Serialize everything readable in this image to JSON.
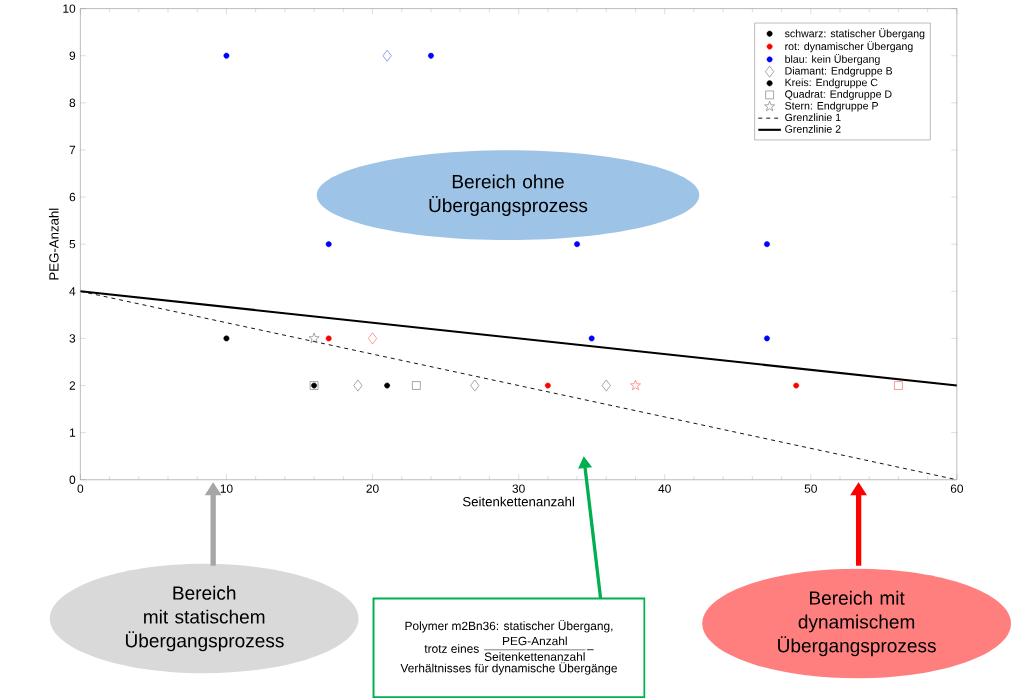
{
  "chart_data": {
    "type": "scatter",
    "xlabel": "Seitenkettenanzahl",
    "ylabel": "PEG-Anzahl",
    "xlim": [
      0,
      60
    ],
    "ylim": [
      0,
      10
    ],
    "xticks": [
      0,
      10,
      20,
      30,
      40,
      50,
      60
    ],
    "yticks": [
      0,
      1,
      2,
      3,
      4,
      5,
      6,
      7,
      8,
      9,
      10
    ],
    "legend": "top right",
    "grid": false,
    "series": [
      {
        "name": "schwarz: statischer Übergang",
        "marker": "circle",
        "color": "#000000"
      },
      {
        "name": "rot: dynamischer Übergang",
        "marker": "circle",
        "color": "#ff0000"
      },
      {
        "name": "blau: kein Übergang",
        "marker": "circle",
        "color": "#0000ff"
      },
      {
        "name": "Diamant: Endgruppe B",
        "marker": "diamond",
        "color": "#595959",
        "x": [
          19,
          27,
          36,
          20,
          21
        ],
        "values": [
          2,
          2,
          2,
          3,
          9
        ],
        "colors": [
          "#595959",
          "#595959",
          "#595959",
          "#ff4040",
          "#4040ff"
        ]
      },
      {
        "name": "Kreis: Endgruppe C",
        "marker": "circle",
        "color": "#000000",
        "x": [
          10,
          16,
          21,
          17,
          32,
          49,
          10,
          24,
          17,
          34,
          47,
          35,
          47
        ],
        "values": [
          3,
          2,
          2,
          3,
          2,
          2,
          9,
          9,
          5,
          5,
          5,
          3,
          3
        ],
        "colors": [
          "#000000",
          "#000000",
          "#000000",
          "#ff0000",
          "#ff0000",
          "#ff0000",
          "#0000ff",
          "#0000ff",
          "#0000ff",
          "#0000ff",
          "#0000ff",
          "#0000ff",
          "#0000ff"
        ]
      },
      {
        "name": "Quadrat: Endgruppe D",
        "marker": "square",
        "color": "#595959",
        "x": [
          16,
          23,
          56
        ],
        "values": [
          2,
          2,
          2
        ],
        "colors": [
          "#595959",
          "#595959",
          "#ff4040"
        ]
      },
      {
        "name": "Stern: Endgruppe P",
        "marker": "star",
        "color": "#595959",
        "x": [
          16,
          38
        ],
        "values": [
          3,
          2
        ],
        "colors": [
          "#595959",
          "#ff4040"
        ]
      },
      {
        "name": "Grenzlinie 1",
        "type": "line",
        "marker": "none",
        "line_style": "dashed",
        "color": "#000000",
        "x": [
          0,
          60
        ],
        "values": [
          4,
          0
        ]
      },
      {
        "name": "Grenzlinie 2",
        "type": "line",
        "marker": "none",
        "line_style": "solid",
        "color": "#000000",
        "x": [
          0,
          60
        ],
        "values": [
          4,
          2
        ]
      }
    ],
    "annotations": [
      "Bereich ohne Übergangsprozess",
      "Bereich mit statischem Übergangsprozess",
      "Bereich mit dynamischem Übergangsprozess",
      "Polymer m2Bn36: statischer Übergang,",
      "trotz eines",
      "PEG-Anzahl",
      "Seitenkettenanzahl",
      "–",
      "Verhältnisses für dynamische Übergänge"
    ]
  }
}
